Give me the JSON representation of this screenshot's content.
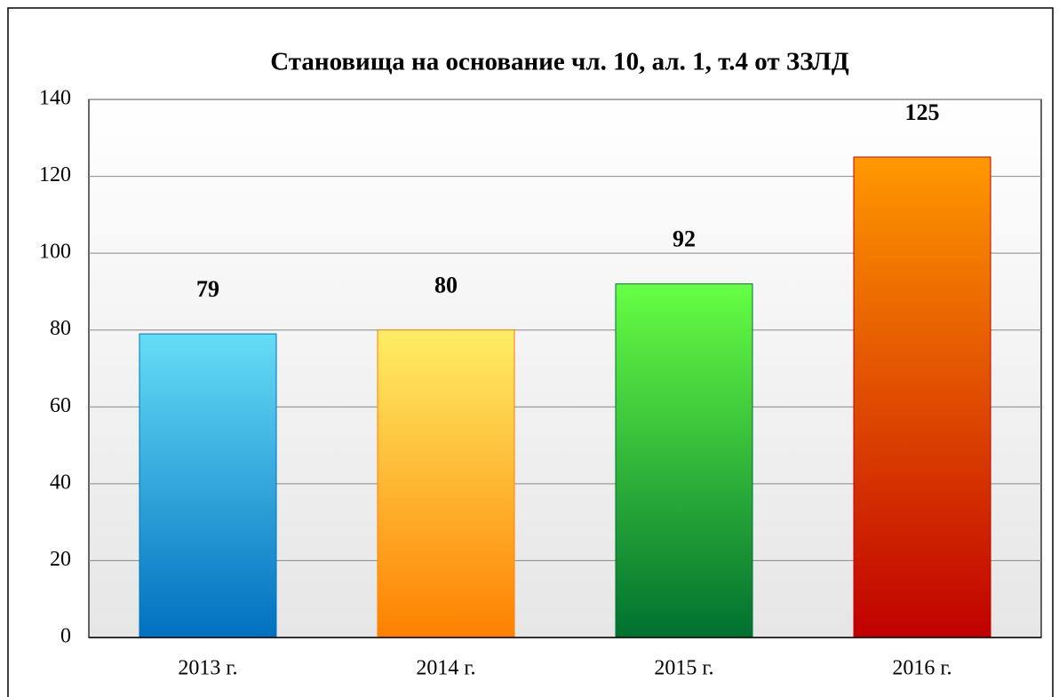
{
  "chart_data": {
    "type": "bar",
    "title": "Становища на основание чл. 10, ал. 1, т.4 от ЗЗЛД",
    "categories": [
      "2013 г.",
      "2014 г.",
      "2015 г.",
      "2016 г."
    ],
    "values": [
      79,
      80,
      92,
      125
    ],
    "colors": [
      [
        "#66ddf6",
        "#0070c0"
      ],
      [
        "#ffee66",
        "#ff8000"
      ],
      [
        "#66ff44",
        "#007030"
      ],
      [
        "#ff9900",
        "#c00000"
      ]
    ],
    "ylim": [
      0,
      140
    ],
    "yticks": [
      0,
      20,
      40,
      60,
      80,
      100,
      120,
      140
    ],
    "grid": true
  }
}
